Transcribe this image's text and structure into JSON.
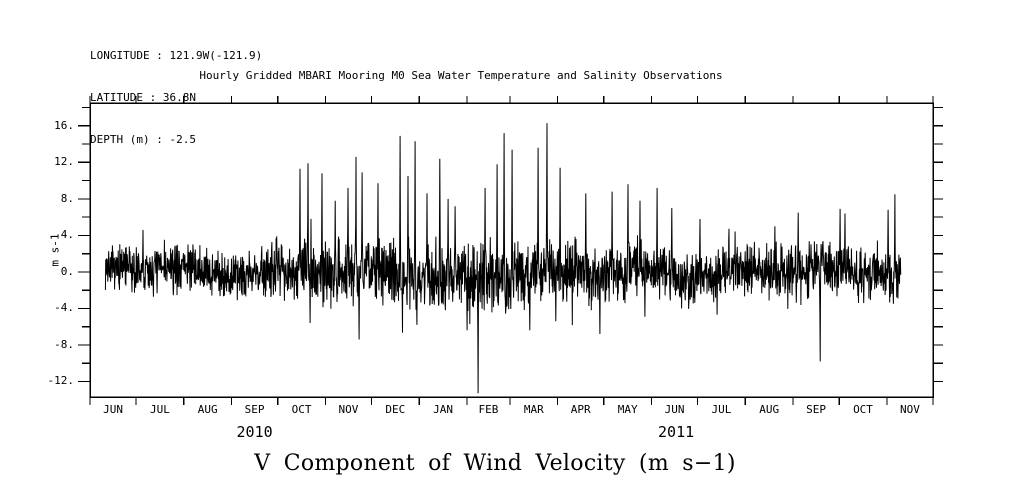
{
  "header": {
    "longitude_line": "LONGITUDE : 121.9W(-121.9)",
    "latitude_line": "LATITUDE : 36.8N",
    "depth_line": "DEPTH (m) : -2.5",
    "title": "Hourly Gridded MBARI Mooring M0 Sea Water Temperature and Salinity Observations"
  },
  "colors": {
    "foreground": "#000000",
    "background": "#ffffff"
  },
  "chart_data": {
    "type": "line",
    "title": "Hourly Gridded MBARI Mooring M0 Sea Water Temperature and Salinity Observations",
    "bottom_title": "V Component of Wind Velocity (m s−1)",
    "ylabel": "m s-1",
    "units": "m s-1",
    "grid": false,
    "legend": "none",
    "ylim": [
      -13.7,
      18.5
    ],
    "ytick_major_values": [
      16,
      12,
      8,
      4,
      0,
      -4,
      -8,
      -12
    ],
    "ytick_major_labels": [
      "16.",
      "12.",
      "8.",
      "4.",
      "0.",
      "-4.",
      "-8.",
      "-12."
    ],
    "ytick_minor_values": [
      18,
      14,
      10,
      6,
      2,
      -2,
      -6,
      -10
    ],
    "ytick_right_values": [
      -12,
      -10,
      -8,
      -6,
      -4,
      -2,
      0,
      2,
      4,
      6,
      8,
      10,
      12,
      14,
      16,
      18
    ],
    "x_axis": {
      "start": "1-JUN-2010",
      "end": "1-DEC-2011",
      "month_labels": [
        "JUN",
        "JUL",
        "AUG",
        "SEP",
        "OCT",
        "NOV",
        "DEC",
        "JAN",
        "FEB",
        "MAR",
        "APR",
        "MAY",
        "JUN",
        "JUL",
        "AUG",
        "SEP",
        "OCT",
        "NOV"
      ],
      "month_days": [
        30,
        31,
        31,
        30,
        31,
        30,
        31,
        31,
        28,
        31,
        30,
        31,
        30,
        31,
        31,
        30,
        31,
        30
      ],
      "year_labels": [
        {
          "label": "2010",
          "start_day": 0,
          "end_day": 214
        },
        {
          "label": "2011",
          "start_day": 214,
          "end_day": 548
        }
      ]
    },
    "series": {
      "name": "V component of wind velocity",
      "sampling": "hourly",
      "start_day": 10,
      "end_day": 527,
      "points": 2600,
      "seed": 7,
      "observed_max": 16.3,
      "observed_max_when": "mid-MAR 2011",
      "observed_min": -13.3,
      "observed_min_when": "early FEB 2011",
      "baseline_by_month": [
        0.2,
        0.2,
        0.2,
        0.2,
        0.2,
        0.0,
        -0.3,
        -0.4,
        -0.4,
        -0.2,
        -0.3,
        -0.1,
        0.0,
        0.1,
        0.1,
        -0.1,
        0.1,
        0.1
      ],
      "noise_amp_by_month": [
        1.3,
        1.4,
        1.4,
        1.4,
        1.7,
        1.9,
        1.9,
        1.8,
        2.0,
        2.0,
        1.8,
        1.7,
        1.6,
        1.5,
        1.5,
        1.6,
        1.5,
        1.5
      ],
      "spikes": [
        {
          "day": 34.5,
          "value": 4.6
        },
        {
          "day": 136.5,
          "value": 11.3
        },
        {
          "day": 141.7,
          "value": 11.9
        },
        {
          "day": 143.0,
          "value": -5.6
        },
        {
          "day": 150.8,
          "value": 10.8
        },
        {
          "day": 159.3,
          "value": 7.8
        },
        {
          "day": 167.7,
          "value": 9.2
        },
        {
          "day": 172.9,
          "value": 12.6
        },
        {
          "day": 174.9,
          "value": -7.4
        },
        {
          "day": 176.8,
          "value": 10.9
        },
        {
          "day": 187.2,
          "value": 9.7
        },
        {
          "day": 201.5,
          "value": 14.9
        },
        {
          "day": 206.7,
          "value": 10.5
        },
        {
          "day": 211.3,
          "value": 14.3
        },
        {
          "day": 212.6,
          "value": -5.8
        },
        {
          "day": 219.1,
          "value": 8.6
        },
        {
          "day": 227.5,
          "value": 12.4
        },
        {
          "day": 232.7,
          "value": 8.0
        },
        {
          "day": 237.3,
          "value": 7.2
        },
        {
          "day": 245.1,
          "value": -6.4
        },
        {
          "day": 252.2,
          "value": -13.3
        },
        {
          "day": 256.8,
          "value": 9.2
        },
        {
          "day": 264.6,
          "value": 11.8
        },
        {
          "day": 269.1,
          "value": 15.2
        },
        {
          "day": 274.3,
          "value": 13.4
        },
        {
          "day": 286.0,
          "value": -6.4
        },
        {
          "day": 291.2,
          "value": 13.6
        },
        {
          "day": 297.1,
          "value": 16.3
        },
        {
          "day": 302.9,
          "value": -5.4
        },
        {
          "day": 305.5,
          "value": 11.4
        },
        {
          "day": 322.4,
          "value": 8.6
        },
        {
          "day": 331.5,
          "value": -6.8
        },
        {
          "day": 339.4,
          "value": 8.8
        },
        {
          "day": 349.7,
          "value": 9.6
        },
        {
          "day": 357.5,
          "value": 7.8
        },
        {
          "day": 360.8,
          "value": -4.9
        },
        {
          "day": 368.6,
          "value": 9.2
        },
        {
          "day": 378.3,
          "value": 7.0
        },
        {
          "day": 396.5,
          "value": 5.8
        },
        {
          "day": 407.6,
          "value": -4.7
        },
        {
          "day": 445.3,
          "value": 5.0
        },
        {
          "day": 460.3,
          "value": 6.5
        },
        {
          "day": 474.6,
          "value": -9.8
        },
        {
          "day": 487.6,
          "value": 6.9
        },
        {
          "day": 490.8,
          "value": 6.4
        },
        {
          "day": 518.8,
          "value": 6.8
        },
        {
          "day": 523.3,
          "value": 8.5
        }
      ]
    }
  }
}
